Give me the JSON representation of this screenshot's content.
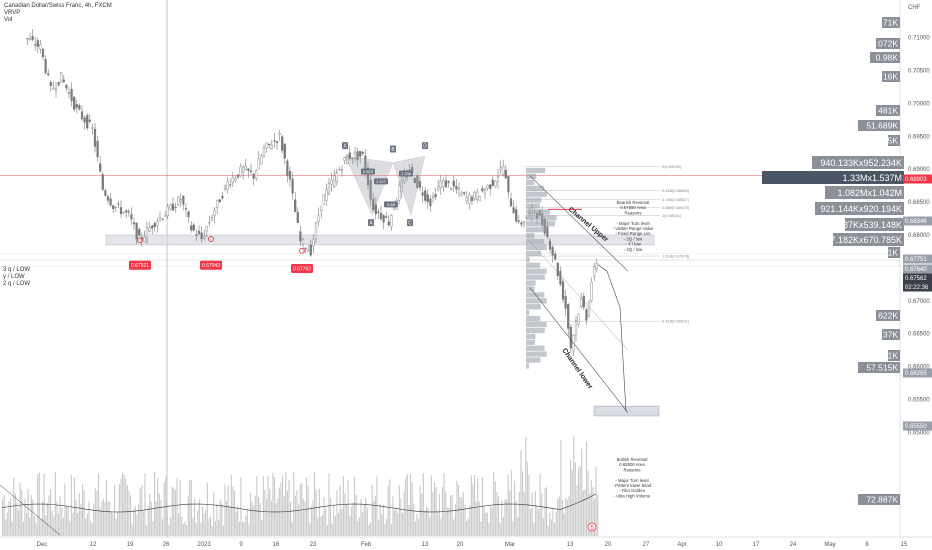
{
  "header": {
    "title": "Canadian Dollar/Swiss Franc, 4h, FXCM",
    "indicator1": "VRVP",
    "indicator2": "Vol"
  },
  "colors": {
    "candle": "#787878",
    "price_line": "#f23645",
    "level_box": "#dadde3",
    "marker": "#f23645",
    "volume": "#c8c8c8",
    "axis_text": "#555555"
  },
  "chart_data": {
    "type": "candlestick",
    "symbol": "CADCHF",
    "interval": "4h",
    "y_axis_label": "CHF",
    "ylim": [
      0.6452,
      0.7145
    ],
    "y_ticks": [
      "0.71000",
      "0.70500",
      "0.70000",
      "0.69500",
      "0.69000",
      "0.68500",
      "0.68000",
      "0.67500",
      "0.67000",
      "0.66500",
      "0.66000",
      "0.65500",
      "0.65000"
    ],
    "x_ticks": [
      "Dec",
      "12",
      "19",
      "26",
      "2023",
      "9",
      "16",
      "23",
      "Feb",
      "13",
      "20",
      "Mar",
      "13",
      "20",
      "27",
      "Apr",
      "10",
      "17",
      "24",
      "May",
      "8",
      "15"
    ],
    "price_path": [
      {
        "t": "Nov 28",
        "p": 0.71
      },
      {
        "t": "Dec 1",
        "p": 0.7085
      },
      {
        "t": "Dec 3",
        "p": 0.702
      },
      {
        "t": "Dec 5",
        "p": 0.704
      },
      {
        "t": "Dec 8",
        "p": 0.699
      },
      {
        "t": "Dec 11",
        "p": 0.696
      },
      {
        "t": "Dec 13",
        "p": 0.687
      },
      {
        "t": "Dec 15",
        "p": 0.6845
      },
      {
        "t": "Dec 18",
        "p": 0.683
      },
      {
        "t": "Dec 20",
        "p": 0.6792
      },
      {
        "t": "Dec 23",
        "p": 0.682
      },
      {
        "t": "Dec 26",
        "p": 0.684
      },
      {
        "t": "Dec 28",
        "p": 0.6855
      },
      {
        "t": "Dec 30",
        "p": 0.681
      },
      {
        "t": "Jan 1",
        "p": 0.6794
      },
      {
        "t": "Jan 3",
        "p": 0.683
      },
      {
        "t": "Jan 6",
        "p": 0.688
      },
      {
        "t": "Jan 9",
        "p": 0.69
      },
      {
        "t": "Jan 11",
        "p": 0.689
      },
      {
        "t": "Jan 13",
        "p": 0.693
      },
      {
        "t": "Jan 16",
        "p": 0.695
      },
      {
        "t": "Jan 18",
        "p": 0.688
      },
      {
        "t": "Jan 20",
        "p": 0.679
      },
      {
        "t": "Jan 22",
        "p": 0.6776
      },
      {
        "t": "Jan 24",
        "p": 0.685
      },
      {
        "t": "Jan 26",
        "p": 0.688
      },
      {
        "t": "Jan 29",
        "p": 0.692
      },
      {
        "t": "Feb 1",
        "p": 0.692
      },
      {
        "t": "Feb 3",
        "p": 0.684
      },
      {
        "t": "Feb 6",
        "p": 0.682
      },
      {
        "t": "Feb 8",
        "p": 0.687
      },
      {
        "t": "Feb 10",
        "p": 0.69
      },
      {
        "t": "Feb 12",
        "p": 0.687
      },
      {
        "t": "Feb 14",
        "p": 0.685
      },
      {
        "t": "Feb 16",
        "p": 0.688
      },
      {
        "t": "Feb 18",
        "p": 0.6875
      },
      {
        "t": "Feb 21",
        "p": 0.6855
      },
      {
        "t": "Feb 23",
        "p": 0.686
      },
      {
        "t": "Feb 26",
        "p": 0.688
      },
      {
        "t": "Feb 28",
        "p": 0.6905
      },
      {
        "t": "Mar 1",
        "p": 0.686
      },
      {
        "t": "Mar 3",
        "p": 0.6815
      },
      {
        "t": "Mar 6",
        "p": 0.684
      },
      {
        "t": "Mar 8",
        "p": 0.681
      },
      {
        "t": "Mar 10",
        "p": 0.676
      },
      {
        "t": "Mar 12",
        "p": 0.669
      },
      {
        "t": "Mar 13",
        "p": 0.663
      },
      {
        "t": "Mar 14",
        "p": 0.667
      },
      {
        "t": "Mar 15",
        "p": 0.67
      },
      {
        "t": "Mar 16",
        "p": 0.6676
      },
      {
        "t": "Mar 17",
        "p": 0.673
      },
      {
        "t": "Mar 18",
        "p": 0.676
      }
    ],
    "markers": [
      {
        "label": "0.67921",
        "price": 0.6792
      },
      {
        "label": "0.67943",
        "price": 0.6794
      },
      {
        "label": "0.67762",
        "price": 0.6776
      }
    ],
    "level_labels": [
      "3 q / LOW",
      "y / LOW",
      "2 q / LOW"
    ],
    "pattern_points": [
      "X",
      "A",
      "B",
      "C",
      "D"
    ],
    "pattern_ratios": [
      "0.825",
      "1.127",
      "0.85",
      "1.236"
    ],
    "fib_levels": [
      "0(0.69039)",
      "0.618(0.68680)",
      "0.786(0.68537)",
      "0.886(0.68420)",
      "1(0.68301)",
      "1.618(0.67678)",
      "0.618(0.66691)"
    ],
    "channel_labels": [
      "Channel Upper",
      "Channel lower"
    ],
    "bearish_note": [
      "Bearish Reversal",
      "0.67650 Area",
      "Reasons",
      "",
      "- Major Turn level",
      "- Visible Range Value",
      "- Fixed Range Lvn",
      "- 3Q / low",
      "- Y / low",
      "- 2Q / low"
    ],
    "bullish_note": [
      "Bullish Reversal",
      "0.65500 Area",
      "Reasons",
      "",
      "- Major Turn level",
      "- Pattern lower band",
      "- Fibo Golden",
      "- ultra High Volume"
    ],
    "volume_profile_labels": [
      "940.133Kx952.234K",
      "1.33Mx1.537M",
      "1.082Mx1.042M",
      "921.144Kx920.194K",
      "1.487Kx539.148K",
      "777.182Kx670.785K"
    ],
    "right_tags": [
      "71K",
      "072K",
      "0.98K",
      "16K",
      "481K",
      "51.689K",
      "5K",
      "1K",
      "622K",
      "37K",
      "1K",
      "57.515K",
      "72.887K"
    ],
    "price_tags": [
      {
        "label": "0.68903",
        "style": "red"
      },
      {
        "label": "0.68346",
        "style": "gray"
      },
      {
        "label": "0.67751",
        "style": "gray"
      },
      {
        "label": "0.67640",
        "style": "gray"
      },
      {
        "label": "0.67562",
        "style": "dark"
      },
      {
        "label": "02:22:36",
        "style": "dark"
      },
      {
        "label": "0.66255",
        "style": "gray"
      },
      {
        "label": "0.65550",
        "style": "gray"
      }
    ],
    "alert_badge": "5"
  }
}
